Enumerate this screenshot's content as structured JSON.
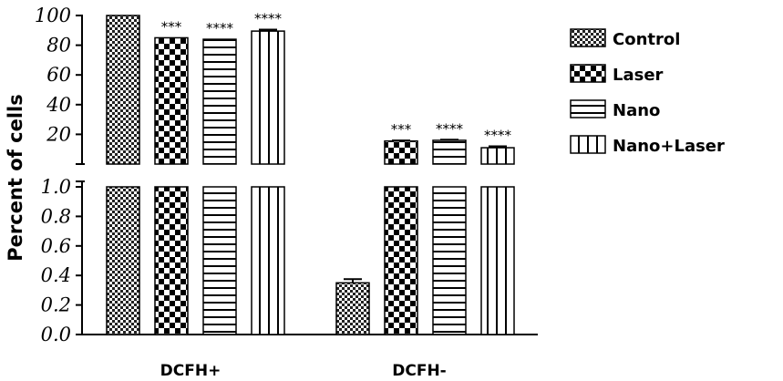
{
  "chart_data": {
    "type": "bar",
    "title": "",
    "xlabel": "",
    "ylabel": "Percent of cells",
    "categories": [
      "DCFH+",
      "DCFH-"
    ],
    "axis_break": true,
    "y_segments": [
      {
        "name": "lower",
        "ylim": [
          0.0,
          1.0
        ],
        "ticks": [
          "0.0",
          "0.2",
          "0.4",
          "0.6",
          "0.8",
          "1.0"
        ]
      },
      {
        "name": "upper",
        "ylim": [
          0,
          100
        ],
        "ticks": [
          "20",
          "40",
          "60",
          "80",
          "100"
        ]
      }
    ],
    "series": [
      {
        "name": "Control",
        "pattern": "checker-fine",
        "values": [
          100,
          0.35
        ],
        "errors": [
          0,
          0.025
        ],
        "significance": [
          "",
          ""
        ]
      },
      {
        "name": "Laser",
        "pattern": "checker-coarse",
        "values": [
          85,
          15.5
        ],
        "errors": [
          0,
          0.4
        ],
        "significance": [
          "***",
          "***"
        ]
      },
      {
        "name": "Nano",
        "pattern": "horizontal-lines",
        "values": [
          84,
          16
        ],
        "errors": [
          0,
          0.4
        ],
        "significance": [
          "****",
          "****"
        ]
      },
      {
        "name": "Nano+Laser",
        "pattern": "vertical-lines",
        "values": [
          89.5,
          11
        ],
        "errors": [
          1,
          1
        ],
        "significance": [
          "****",
          "****"
        ]
      }
    ],
    "legend_position": "right",
    "grid": false
  }
}
